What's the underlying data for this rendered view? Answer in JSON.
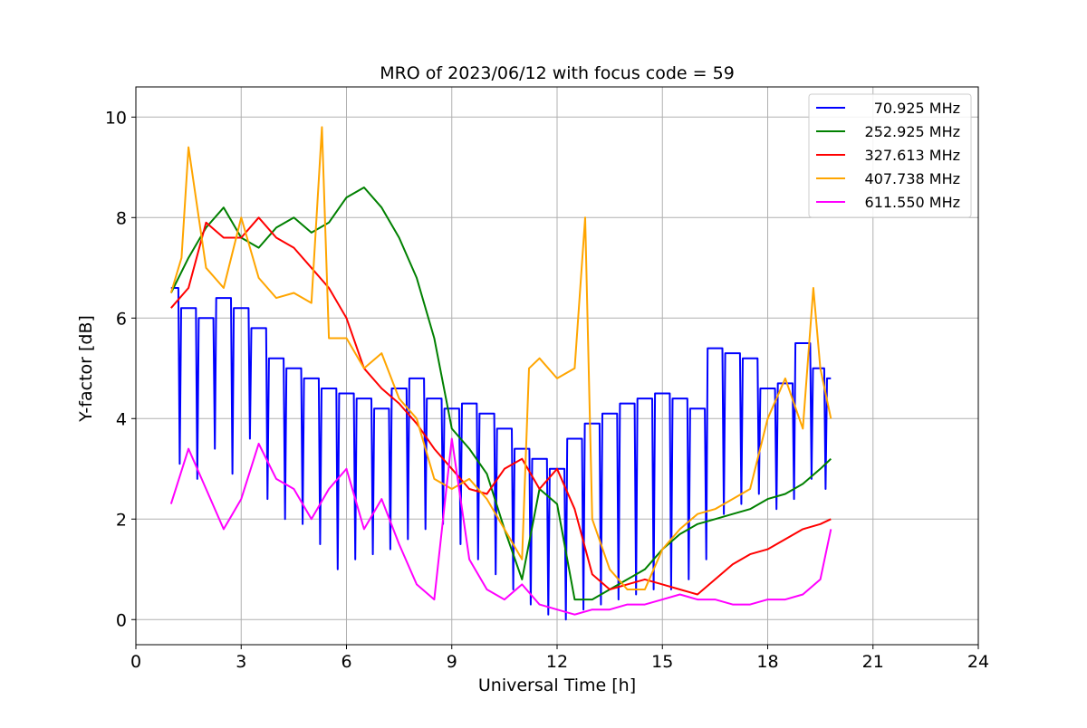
{
  "chart_data": {
    "type": "line",
    "title": "MRO of 2023/06/12 with focus code = 59",
    "xlabel": "Universal Time [h]",
    "ylabel": "Y-factor [dB]",
    "xlim": [
      0,
      24
    ],
    "ylim": [
      -0.5,
      10.6
    ],
    "xticks": [
      0,
      3,
      6,
      9,
      12,
      15,
      18,
      21,
      24
    ],
    "yticks": [
      0,
      2,
      4,
      6,
      8,
      10
    ],
    "grid": true,
    "legend_position": "top-right",
    "series": [
      {
        "name": "70.925 MHz",
        "color": "#0000ff",
        "x": [
          1.0,
          1.5,
          2.0,
          2.5,
          3.0,
          3.5,
          4.0,
          4.5,
          5.0,
          5.5,
          6.0,
          6.5,
          7.0,
          7.5,
          8.0,
          8.5,
          9.0,
          9.5,
          10.0,
          10.5,
          11.0,
          11.5,
          12.0,
          12.5,
          13.0,
          13.5,
          14.0,
          14.5,
          15.0,
          15.5,
          16.0,
          16.5,
          17.0,
          17.5,
          18.0,
          18.5,
          19.0,
          19.5,
          19.8
        ],
        "y": [
          6.6,
          6.2,
          6.0,
          6.4,
          6.2,
          5.8,
          5.2,
          5.0,
          4.8,
          4.6,
          4.5,
          4.4,
          4.2,
          4.6,
          4.8,
          4.4,
          4.2,
          4.3,
          4.1,
          3.8,
          3.4,
          3.2,
          3.0,
          3.6,
          3.9,
          4.1,
          4.3,
          4.4,
          4.5,
          4.4,
          4.2,
          5.4,
          5.3,
          5.2,
          4.6,
          4.7,
          5.5,
          5.0,
          4.8
        ],
        "dips": [
          3.1,
          2.8,
          3.4,
          2.9,
          3.6,
          2.4,
          2.0,
          1.9,
          1.5,
          1.0,
          1.2,
          1.3,
          1.4,
          1.6,
          1.8,
          1.9,
          1.5,
          1.2,
          0.9,
          0.6,
          0.3,
          0.1,
          0.0,
          0.2,
          0.3,
          0.4,
          0.5,
          0.6,
          0.6,
          0.8,
          1.2,
          2.1,
          2.3,
          2.5,
          2.2,
          2.4,
          2.8,
          2.6,
          3.0
        ]
      },
      {
        "name": "252.925 MHz",
        "color": "#008000",
        "x": [
          1.0,
          1.5,
          2.0,
          2.5,
          3.0,
          3.5,
          4.0,
          4.5,
          5.0,
          5.5,
          6.0,
          6.5,
          7.0,
          7.5,
          8.0,
          8.5,
          9.0,
          9.5,
          10.0,
          10.5,
          11.0,
          11.5,
          12.0,
          12.5,
          13.0,
          13.5,
          14.0,
          14.5,
          15.0,
          15.5,
          16.0,
          16.5,
          17.0,
          17.5,
          18.0,
          18.5,
          19.0,
          19.5,
          19.8
        ],
        "y": [
          6.5,
          7.2,
          7.8,
          8.2,
          7.6,
          7.4,
          7.8,
          8.0,
          7.7,
          7.9,
          8.4,
          8.6,
          8.2,
          7.6,
          6.8,
          5.6,
          3.8,
          3.4,
          2.9,
          1.8,
          0.8,
          2.6,
          2.3,
          0.4,
          0.4,
          0.6,
          0.8,
          1.0,
          1.4,
          1.7,
          1.9,
          2.0,
          2.1,
          2.2,
          2.4,
          2.5,
          2.7,
          3.0,
          3.2
        ]
      },
      {
        "name": "327.613 MHz",
        "color": "#ff0000",
        "x": [
          1.0,
          1.5,
          2.0,
          2.5,
          3.0,
          3.5,
          4.0,
          4.5,
          5.0,
          5.5,
          6.0,
          6.5,
          7.0,
          7.5,
          8.0,
          8.5,
          9.0,
          9.5,
          10.0,
          10.5,
          11.0,
          11.5,
          12.0,
          12.5,
          13.0,
          13.5,
          14.0,
          14.5,
          15.0,
          15.5,
          16.0,
          16.5,
          17.0,
          17.5,
          18.0,
          18.5,
          19.0,
          19.5,
          19.8
        ],
        "y": [
          6.2,
          6.6,
          7.9,
          7.6,
          7.6,
          8.0,
          7.6,
          7.4,
          7.0,
          6.6,
          6.0,
          5.0,
          4.6,
          4.3,
          3.9,
          3.4,
          3.0,
          2.6,
          2.5,
          3.0,
          3.2,
          2.6,
          3.0,
          2.2,
          0.9,
          0.6,
          0.7,
          0.8,
          0.7,
          0.6,
          0.5,
          0.8,
          1.1,
          1.3,
          1.4,
          1.6,
          1.8,
          1.9,
          2.0
        ]
      },
      {
        "name": "407.738 MHz",
        "color": "#ffa500",
        "x": [
          1.0,
          1.3,
          1.5,
          2.0,
          2.5,
          3.0,
          3.5,
          4.0,
          4.5,
          5.0,
          5.3,
          5.5,
          6.0,
          6.5,
          7.0,
          7.5,
          8.0,
          8.5,
          9.0,
          9.5,
          10.0,
          10.5,
          11.0,
          11.2,
          11.5,
          12.0,
          12.5,
          12.8,
          13.0,
          13.5,
          14.0,
          14.5,
          15.0,
          15.5,
          16.0,
          16.5,
          17.0,
          17.5,
          18.0,
          18.5,
          19.0,
          19.3,
          19.5,
          19.8
        ],
        "y": [
          6.5,
          7.2,
          9.4,
          7.0,
          6.6,
          8.0,
          6.8,
          6.4,
          6.5,
          6.3,
          9.8,
          5.6,
          5.6,
          5.0,
          5.3,
          4.4,
          4.0,
          2.8,
          2.6,
          2.8,
          2.4,
          1.8,
          1.2,
          5.0,
          5.2,
          4.8,
          5.0,
          8.0,
          2.0,
          1.0,
          0.6,
          0.6,
          1.4,
          1.8,
          2.1,
          2.2,
          2.4,
          2.6,
          4.0,
          4.8,
          3.8,
          6.6,
          5.0,
          4.0
        ]
      },
      {
        "name": "611.550 MHz",
        "color": "#ff00ff",
        "x": [
          1.0,
          1.5,
          2.0,
          2.5,
          3.0,
          3.5,
          4.0,
          4.5,
          5.0,
          5.5,
          6.0,
          6.5,
          7.0,
          7.5,
          8.0,
          8.5,
          9.0,
          9.5,
          10.0,
          10.5,
          11.0,
          11.5,
          12.0,
          12.5,
          13.0,
          13.5,
          14.0,
          14.5,
          15.0,
          15.5,
          16.0,
          16.5,
          17.0,
          17.5,
          18.0,
          18.5,
          19.0,
          19.5,
          19.8
        ],
        "y": [
          2.3,
          3.4,
          2.6,
          1.8,
          2.4,
          3.5,
          2.8,
          2.6,
          2.0,
          2.6,
          3.0,
          1.8,
          2.4,
          1.5,
          0.7,
          0.4,
          3.6,
          1.2,
          0.6,
          0.4,
          0.7,
          0.3,
          0.2,
          0.1,
          0.2,
          0.2,
          0.3,
          0.3,
          0.4,
          0.5,
          0.4,
          0.4,
          0.3,
          0.3,
          0.4,
          0.4,
          0.5,
          0.8,
          1.8
        ]
      }
    ]
  }
}
